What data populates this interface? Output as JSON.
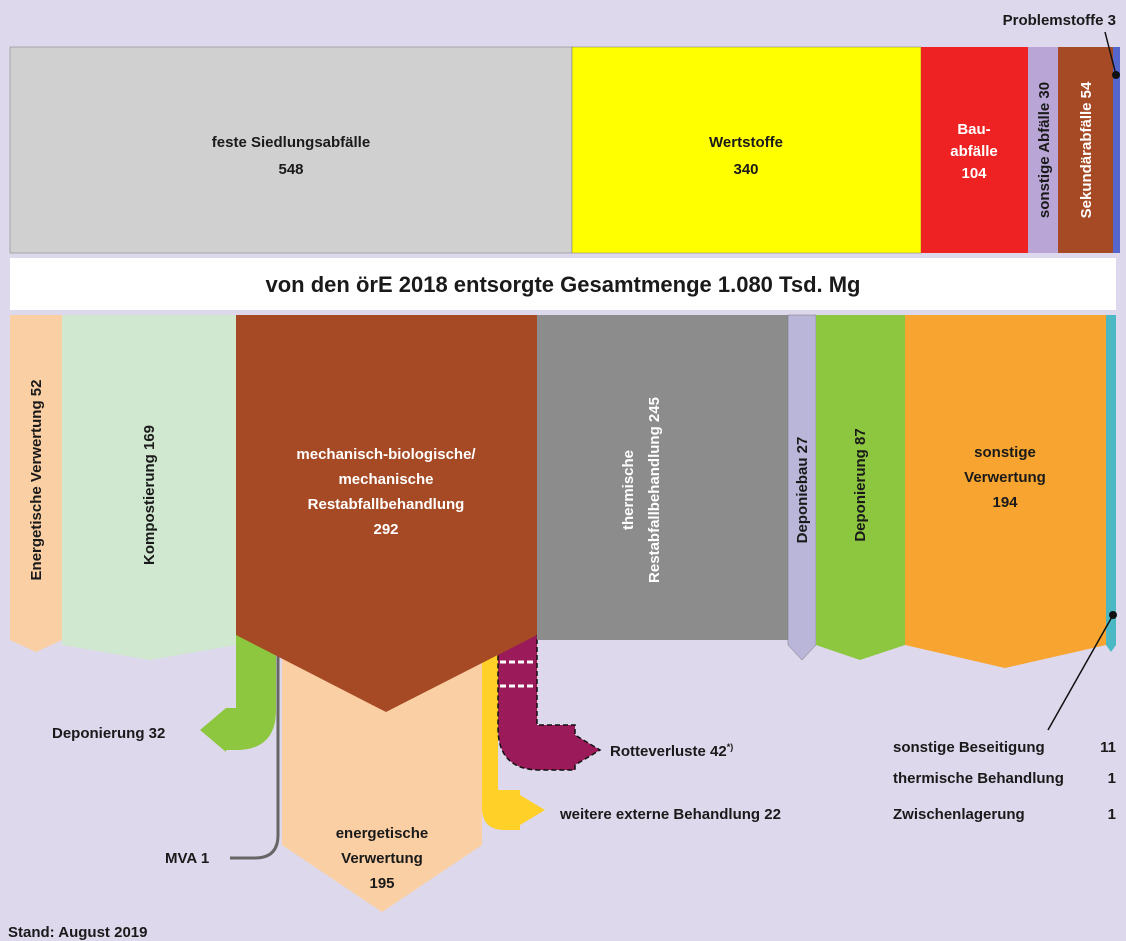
{
  "title": "von den örE 2018 entsorgte Gesamtmenge 1.080 Tsd. Mg",
  "sources": [
    {
      "lines": [
        "feste Siedlungsabfälle"
      ],
      "value": 548
    },
    {
      "lines": [
        "Wertstoffe"
      ],
      "value": 340
    },
    {
      "lines": [
        "Bau-",
        "abfälle"
      ],
      "value": 104
    },
    {
      "lines": [
        "sonstige Abfälle"
      ],
      "value": 30
    },
    {
      "lines": [
        "Sekundärabfälle"
      ],
      "value": 54
    },
    {
      "lines": [
        "Problemstoffe"
      ],
      "value": 3
    }
  ],
  "treatments": [
    {
      "lines": [
        "Energetische Verwertung"
      ],
      "value": 52
    },
    {
      "lines": [
        "Kompostierung"
      ],
      "value": 169
    },
    {
      "lines": [
        "mechanisch-biologische/",
        "mechanische",
        "Restabfallbehandlung"
      ],
      "value": 292
    },
    {
      "lines": [
        "thermische",
        "Restabfallbehandlung"
      ],
      "value": 245
    },
    {
      "lines": [
        "Deponiebau"
      ],
      "value": 27
    },
    {
      "lines": [
        "Deponierung"
      ],
      "value": 87
    },
    {
      "lines": [
        "sonstige",
        "Verwertung"
      ],
      "value": 194
    }
  ],
  "mba_outputs": [
    {
      "lines": [
        "Deponierung"
      ],
      "value": 32
    },
    {
      "lines": [
        "MVA"
      ],
      "value": 1
    },
    {
      "lines": [
        "energetische",
        "Verwertung"
      ],
      "value": 195
    },
    {
      "lines": [
        "weitere externe Behandlung"
      ],
      "value": 22
    },
    {
      "lines": [
        "Rotteverluste"
      ],
      "value": 42,
      "note": "*)"
    }
  ],
  "other_disposal": [
    {
      "name": "sonstige Beseitigung",
      "value": 11
    },
    {
      "name": "thermische Behandlung",
      "value": 1
    },
    {
      "name": "Zwischenlagerung",
      "value": 1
    }
  ],
  "footer": "Stand: August 2019"
}
